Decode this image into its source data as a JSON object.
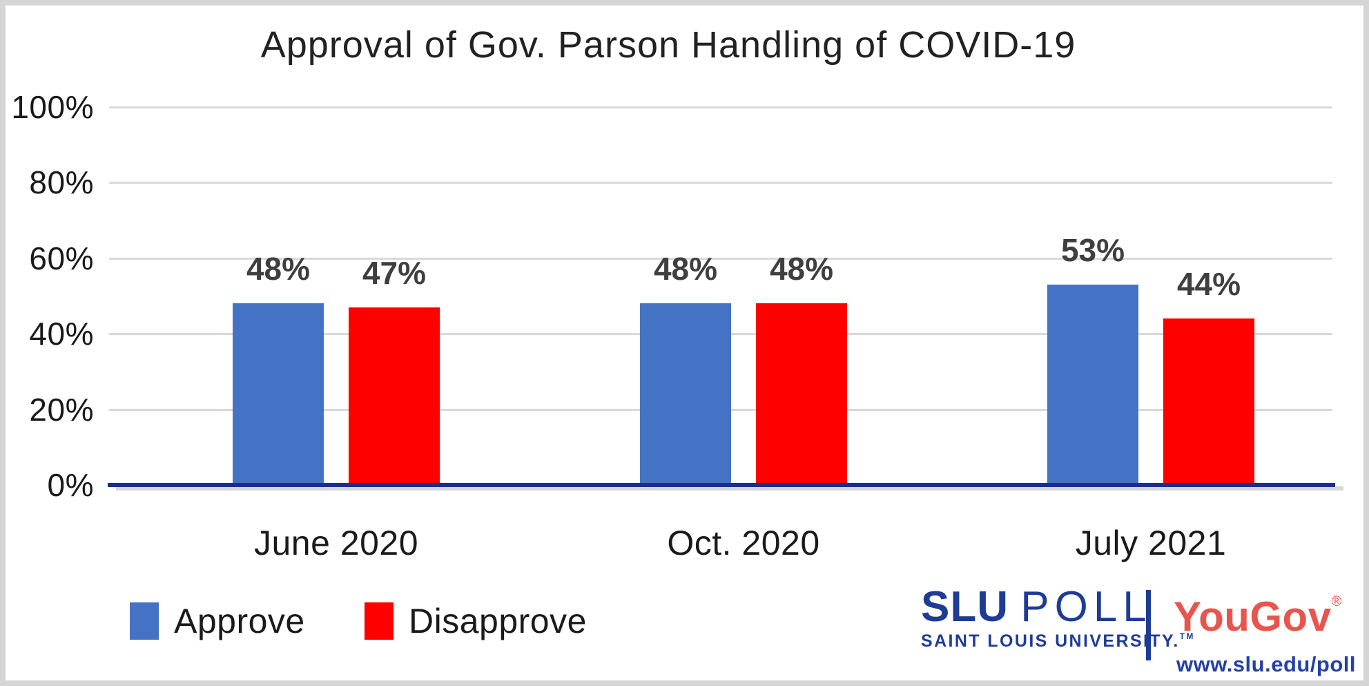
{
  "chart_data": {
    "type": "bar",
    "title": "Approval of Gov. Parson Handling of COVID-19",
    "categories": [
      "June 2020",
      "Oct. 2020",
      "July 2021"
    ],
    "series": [
      {
        "name": "Approve",
        "color": "#4472C4",
        "values": [
          48,
          48,
          53
        ]
      },
      {
        "name": "Disapprove",
        "color": "#FF0000",
        "values": [
          47,
          48,
          44
        ]
      }
    ],
    "data_label_suffix": "%",
    "ylim": [
      0,
      100
    ],
    "ytick_step": 20,
    "ytick_labels": [
      "0%",
      "20%",
      "40%",
      "60%",
      "80%",
      "100%"
    ],
    "grid": true,
    "legend_position": "bottom-left",
    "axis_baseline_color": "#1B2F8E",
    "gridline_color": "#D9D9D9"
  },
  "branding": {
    "slu_bold": "SLU",
    "slu_light": "POLL",
    "slu_subtitle": "SAINT LOUIS UNIVERSITY.",
    "slu_tm": "TM",
    "partner": "YouGov",
    "partner_reg": "®",
    "url": "www.slu.edu/poll"
  }
}
